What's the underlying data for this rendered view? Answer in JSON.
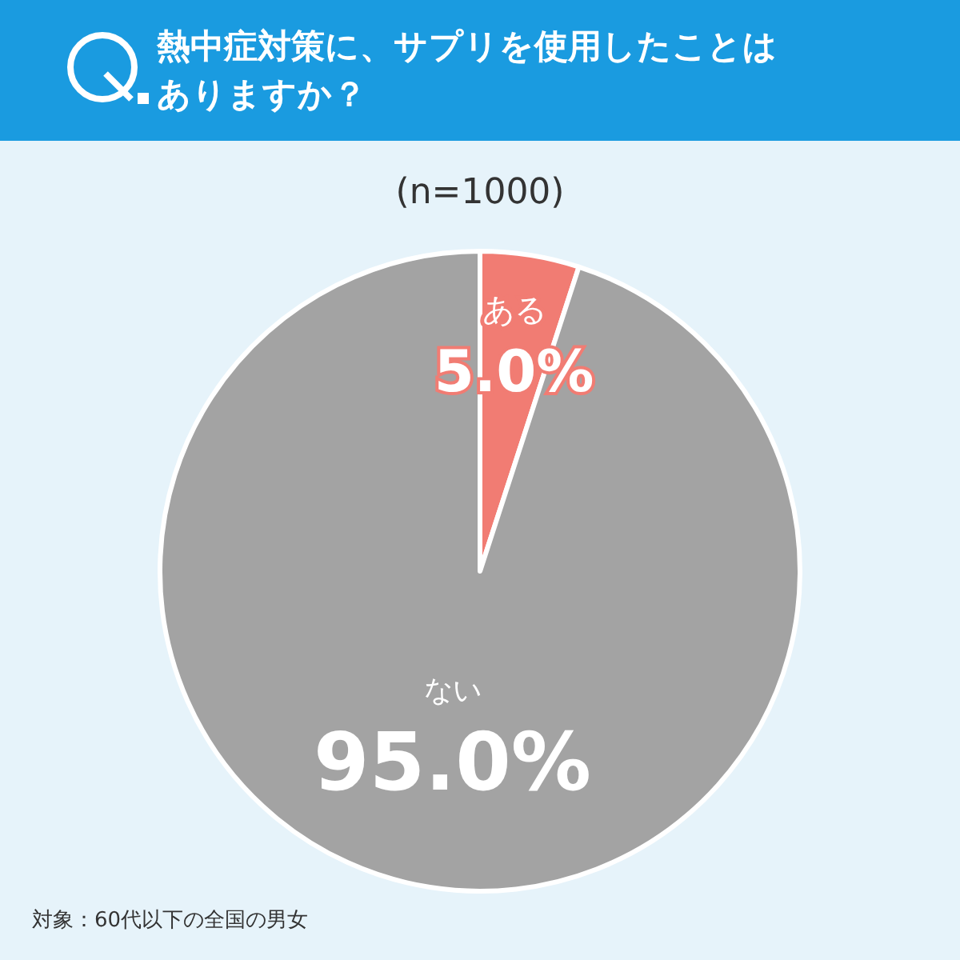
{
  "chart_data": {
    "type": "pie",
    "title": "熱中症対策に、サプリを使用したことはありますか？",
    "subtitle": "(n=1000)",
    "categories": [
      "ある",
      "ない"
    ],
    "values": [
      5.0,
      95.0
    ],
    "colors": [
      "#f17c73",
      "#a3a3a3"
    ],
    "value_labels": [
      "5.0%",
      "95.0%"
    ],
    "annotations": [
      "対象：60代以下の全国の男女"
    ]
  }
}
